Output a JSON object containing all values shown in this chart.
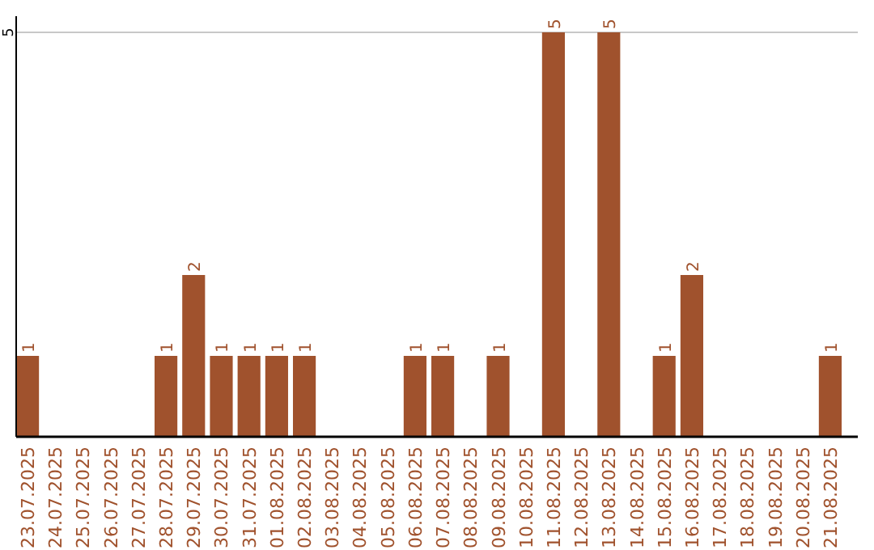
{
  "chart_data": {
    "type": "bar",
    "categories": [
      "23.07.2025",
      "24.07.2025",
      "25.07.2025",
      "26.07.2025",
      "27.07.2025",
      "28.07.2025",
      "29.07.2025",
      "30.07.2025",
      "31.07.2025",
      "01.08.2025",
      "02.08.2025",
      "03.08.2025",
      "04.08.2025",
      "05.08.2025",
      "06.08.2025",
      "07.08.2025",
      "08.08.2025",
      "09.08.2025",
      "10.08.2025",
      "11.08.2025",
      "12.08.2025",
      "13.08.2025",
      "14.08.2025",
      "15.08.2025",
      "16.08.2025",
      "17.08.2025",
      "18.08.2025",
      "19.08.2025",
      "20.08.2025",
      "21.08.2025"
    ],
    "values": [
      1,
      0,
      0,
      0,
      0,
      1,
      2,
      1,
      1,
      1,
      1,
      0,
      0,
      0,
      1,
      1,
      0,
      1,
      0,
      5,
      0,
      5,
      0,
      1,
      2,
      0,
      0,
      0,
      0,
      1
    ],
    "value_labels": [
      "1",
      null,
      null,
      null,
      null,
      "1",
      "2",
      "1",
      "1",
      "1",
      "1",
      null,
      null,
      null,
      "1",
      "1",
      null,
      "1",
      null,
      "5",
      null,
      "5",
      null,
      "1",
      "2",
      null,
      null,
      null,
      null,
      "1"
    ],
    "color": "#a0522d",
    "ylim": [
      0,
      5
    ],
    "yticks": [
      5
    ],
    "ref_lines": [
      {
        "axis": "y",
        "value": 5,
        "color": "#c8c8c8"
      }
    ]
  }
}
